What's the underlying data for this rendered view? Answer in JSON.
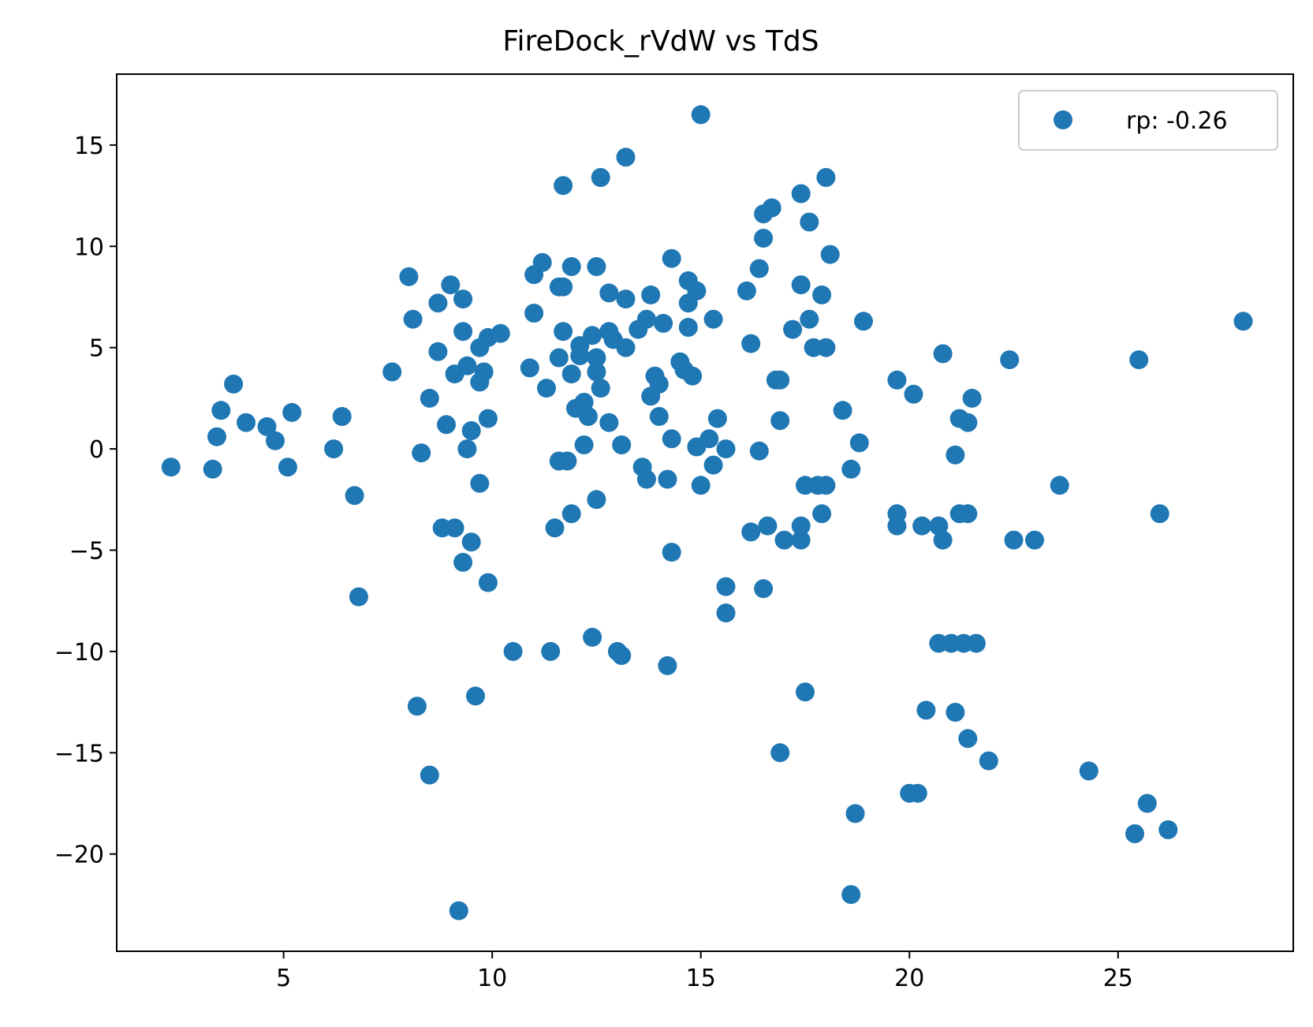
{
  "colors": {
    "point": "#1f77b4",
    "axis": "#000000",
    "legend_border": "#cccccc",
    "background": "#ffffff"
  },
  "chart_data": {
    "type": "scatter",
    "title": "FireDock_rVdW vs TdS",
    "xlabel": "",
    "ylabel": "",
    "xlim": [
      1.0,
      29.2
    ],
    "ylim": [
      -24.8,
      18.5
    ],
    "xticks": [
      5,
      10,
      15,
      20,
      25
    ],
    "xtick_labels": [
      "5",
      "10",
      "15",
      "20",
      "25"
    ],
    "yticks": [
      15,
      10,
      5,
      0,
      -5,
      -10,
      -15,
      -20
    ],
    "ytick_labels": [
      "15",
      "10",
      "5",
      "0",
      "−5",
      "−10",
      "−15",
      "−20"
    ],
    "grid": false,
    "legend": {
      "position": "top-right",
      "entries": [
        {
          "label": "rp: -0.26",
          "marker": "circle"
        }
      ]
    },
    "series": [
      {
        "name": "rp: -0.26",
        "points": [
          [
            2.3,
            -0.9
          ],
          [
            3.3,
            -1.0
          ],
          [
            3.4,
            0.6
          ],
          [
            3.5,
            1.9
          ],
          [
            3.8,
            3.2
          ],
          [
            4.1,
            1.3
          ],
          [
            4.6,
            1.1
          ],
          [
            4.8,
            0.4
          ],
          [
            5.1,
            -0.9
          ],
          [
            5.2,
            1.8
          ],
          [
            6.2,
            0.0
          ],
          [
            6.4,
            1.6
          ],
          [
            6.7,
            -2.3
          ],
          [
            6.8,
            -7.3
          ],
          [
            7.6,
            3.8
          ],
          [
            8.0,
            8.5
          ],
          [
            8.1,
            6.4
          ],
          [
            8.2,
            -12.7
          ],
          [
            8.3,
            -0.2
          ],
          [
            8.5,
            2.5
          ],
          [
            8.5,
            -16.1
          ],
          [
            8.7,
            7.2
          ],
          [
            8.7,
            4.8
          ],
          [
            8.8,
            -3.9
          ],
          [
            8.9,
            1.2
          ],
          [
            9.0,
            8.1
          ],
          [
            9.1,
            -3.9
          ],
          [
            9.1,
            3.7
          ],
          [
            9.2,
            -22.8
          ],
          [
            9.3,
            -5.6
          ],
          [
            9.3,
            5.8
          ],
          [
            9.3,
            7.4
          ],
          [
            9.4,
            4.1
          ],
          [
            9.4,
            0.0
          ],
          [
            9.5,
            0.9
          ],
          [
            9.5,
            -4.6
          ],
          [
            9.6,
            -12.2
          ],
          [
            9.7,
            -1.7
          ],
          [
            9.7,
            5.0
          ],
          [
            9.7,
            3.3
          ],
          [
            9.8,
            3.8
          ],
          [
            9.9,
            5.5
          ],
          [
            9.9,
            1.5
          ],
          [
            9.9,
            -6.6
          ],
          [
            10.2,
            5.7
          ],
          [
            10.5,
            -10.0
          ],
          [
            10.9,
            4.0
          ],
          [
            11.0,
            6.7
          ],
          [
            11.0,
            8.6
          ],
          [
            11.2,
            9.2
          ],
          [
            11.3,
            3.0
          ],
          [
            11.4,
            -10.0
          ],
          [
            11.5,
            -3.9
          ],
          [
            11.6,
            4.5
          ],
          [
            11.6,
            8.0
          ],
          [
            11.6,
            -0.6
          ],
          [
            11.7,
            13.0
          ],
          [
            11.7,
            8.0
          ],
          [
            11.7,
            5.8
          ],
          [
            11.8,
            -0.6
          ],
          [
            11.9,
            -3.2
          ],
          [
            11.9,
            9.0
          ],
          [
            11.9,
            3.7
          ],
          [
            12.0,
            2.0
          ],
          [
            12.1,
            4.6
          ],
          [
            12.1,
            5.1
          ],
          [
            12.2,
            2.3
          ],
          [
            12.2,
            0.2
          ],
          [
            12.3,
            1.6
          ],
          [
            12.4,
            5.6
          ],
          [
            12.4,
            -9.3
          ],
          [
            12.5,
            -2.5
          ],
          [
            12.5,
            4.5
          ],
          [
            12.5,
            9.0
          ],
          [
            12.5,
            3.8
          ],
          [
            12.6,
            3.0
          ],
          [
            12.6,
            13.4
          ],
          [
            12.8,
            1.3
          ],
          [
            12.8,
            5.8
          ],
          [
            12.8,
            7.7
          ],
          [
            12.9,
            5.4
          ],
          [
            13.0,
            -10.0
          ],
          [
            13.1,
            0.2
          ],
          [
            13.1,
            -10.2
          ],
          [
            13.2,
            14.4
          ],
          [
            13.2,
            7.4
          ],
          [
            13.2,
            5.0
          ],
          [
            13.5,
            5.9
          ],
          [
            13.6,
            -0.9
          ],
          [
            13.7,
            6.4
          ],
          [
            13.7,
            -1.5
          ],
          [
            13.8,
            7.6
          ],
          [
            13.8,
            2.6
          ],
          [
            13.9,
            3.6
          ],
          [
            14.0,
            1.6
          ],
          [
            14.0,
            3.2
          ],
          [
            14.1,
            6.2
          ],
          [
            14.2,
            -10.7
          ],
          [
            14.2,
            -1.5
          ],
          [
            14.3,
            -5.1
          ],
          [
            14.3,
            0.5
          ],
          [
            14.3,
            9.4
          ],
          [
            14.5,
            4.3
          ],
          [
            14.6,
            3.9
          ],
          [
            14.7,
            8.3
          ],
          [
            14.7,
            7.2
          ],
          [
            14.7,
            6.0
          ],
          [
            14.8,
            3.6
          ],
          [
            14.9,
            7.8
          ],
          [
            14.9,
            0.1
          ],
          [
            15.0,
            16.5
          ],
          [
            15.0,
            -1.8
          ],
          [
            15.2,
            0.5
          ],
          [
            15.3,
            -0.8
          ],
          [
            15.3,
            6.4
          ],
          [
            15.4,
            1.5
          ],
          [
            15.6,
            0.0
          ],
          [
            15.6,
            -6.8
          ],
          [
            15.6,
            -8.1
          ],
          [
            16.1,
            7.8
          ],
          [
            16.2,
            -4.1
          ],
          [
            16.2,
            5.2
          ],
          [
            16.4,
            8.9
          ],
          [
            16.4,
            -0.1
          ],
          [
            16.5,
            10.4
          ],
          [
            16.5,
            -6.9
          ],
          [
            16.5,
            11.6
          ],
          [
            16.6,
            -3.8
          ],
          [
            16.7,
            11.9
          ],
          [
            16.8,
            3.4
          ],
          [
            16.9,
            3.4
          ],
          [
            16.9,
            1.4
          ],
          [
            16.9,
            -15.0
          ],
          [
            17.0,
            -4.5
          ],
          [
            17.2,
            5.9
          ],
          [
            17.4,
            -4.5
          ],
          [
            17.4,
            12.6
          ],
          [
            17.4,
            -3.8
          ],
          [
            17.4,
            8.1
          ],
          [
            17.5,
            -12.0
          ],
          [
            17.5,
            -1.8
          ],
          [
            17.6,
            11.2
          ],
          [
            17.6,
            6.4
          ],
          [
            17.7,
            5.0
          ],
          [
            17.8,
            -1.8
          ],
          [
            17.9,
            7.6
          ],
          [
            17.9,
            -3.2
          ],
          [
            18.0,
            13.4
          ],
          [
            18.0,
            5.0
          ],
          [
            18.0,
            -1.8
          ],
          [
            18.1,
            9.6
          ],
          [
            18.4,
            1.9
          ],
          [
            18.6,
            -1.0
          ],
          [
            18.6,
            -22.0
          ],
          [
            18.7,
            -18.0
          ],
          [
            18.8,
            0.3
          ],
          [
            18.9,
            6.3
          ],
          [
            19.7,
            3.4
          ],
          [
            19.7,
            -3.2
          ],
          [
            19.7,
            -3.8
          ],
          [
            20.0,
            -17.0
          ],
          [
            20.1,
            2.7
          ],
          [
            20.2,
            -17.0
          ],
          [
            20.3,
            -3.8
          ],
          [
            20.4,
            -12.9
          ],
          [
            20.7,
            -3.8
          ],
          [
            20.7,
            -9.6
          ],
          [
            20.8,
            4.7
          ],
          [
            20.8,
            -4.5
          ],
          [
            21.0,
            -9.6
          ],
          [
            21.1,
            -13.0
          ],
          [
            21.1,
            -0.3
          ],
          [
            21.2,
            -3.2
          ],
          [
            21.2,
            1.5
          ],
          [
            21.3,
            -9.6
          ],
          [
            21.4,
            -3.2
          ],
          [
            21.4,
            1.3
          ],
          [
            21.4,
            -14.3
          ],
          [
            21.5,
            2.5
          ],
          [
            21.6,
            -9.6
          ],
          [
            21.9,
            -15.4
          ],
          [
            22.4,
            4.4
          ],
          [
            22.5,
            -4.5
          ],
          [
            23.0,
            -4.5
          ],
          [
            23.6,
            -1.8
          ],
          [
            24.3,
            -15.9
          ],
          [
            25.4,
            -19.0
          ],
          [
            25.5,
            4.4
          ],
          [
            25.7,
            -17.5
          ],
          [
            26.0,
            -3.2
          ],
          [
            26.2,
            -18.8
          ],
          [
            28.0,
            6.3
          ]
        ]
      }
    ]
  }
}
